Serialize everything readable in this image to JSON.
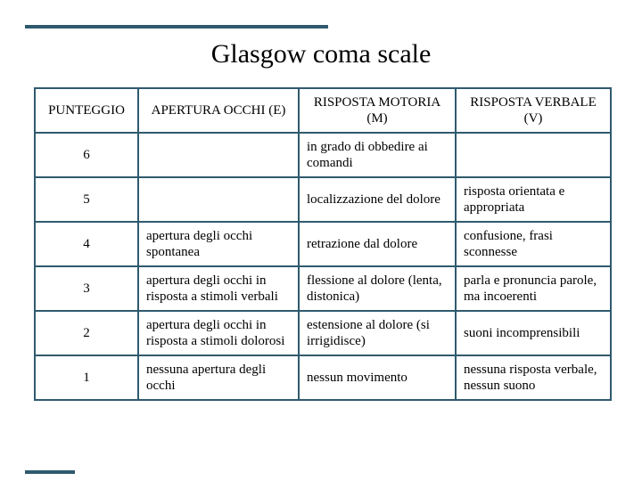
{
  "title": "Glasgow coma scale",
  "table": {
    "headers": [
      "PUNTEGGIO",
      "APERTURA OCCHI (E)",
      "RISPOSTA MOTORIA (M)",
      "RISPOSTA VERBALE (V)"
    ],
    "rows": [
      {
        "score": "6",
        "e": "",
        "m": "in grado di obbedire ai comandi",
        "v": ""
      },
      {
        "score": "5",
        "e": "",
        "m": "localizzazione del dolore",
        "v": "risposta orientata e appropriata"
      },
      {
        "score": "4",
        "e": "apertura degli occhi spontanea",
        "m": "retrazione dal dolore",
        "v": "confusione, frasi sconnesse"
      },
      {
        "score": "3",
        "e": "apertura degli occhi in risposta a stimoli verbali",
        "m": "flessione al dolore (lenta, distonica)",
        "v": "parla e pronuncia parole, ma incoerenti"
      },
      {
        "score": "2",
        "e": "apertura degli occhi in risposta a stimoli dolorosi",
        "m": "estensione al dolore (si irrigidisce)",
        "v": "suoni incomprensibili"
      },
      {
        "score": "1",
        "e": "nessuna apertura degli occhi",
        "m": "nessun movimento",
        "v": "nessuna risposta verbale, nessun suono"
      }
    ]
  },
  "colors": {
    "rule": "#2f5a6e",
    "border": "#2f5a6e",
    "text": "#000000",
    "background": "#ffffff"
  }
}
